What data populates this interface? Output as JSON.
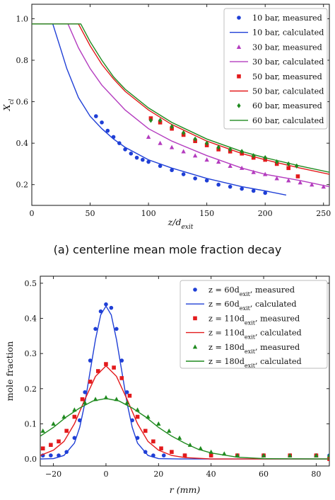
{
  "caption_a": "(a) centerline mean mole fraction decay",
  "colors": {
    "blue": "#1f3fd6",
    "magenta": "#b43cbf",
    "red": "#e31a1c",
    "green": "#1f8a1f"
  },
  "chart_data": [
    {
      "type": "scatter",
      "ylabel": "X_cl",
      "xlabel": "z/d_exit",
      "xlim": [
        0,
        255
      ],
      "ylim": [
        0.1,
        1.07
      ],
      "xticks": [
        0,
        50,
        100,
        150,
        200,
        250
      ],
      "yticks": [
        0.2,
        0.4,
        0.6,
        0.8,
        1.0
      ],
      "legend_position": "top-right",
      "series": [
        {
          "name": "10 bar, measured",
          "kind": "points",
          "marker": "circle",
          "color": "#1f3fd6",
          "x": [
            55,
            60,
            65,
            70,
            75,
            80,
            85,
            90,
            95,
            100,
            110,
            120,
            130,
            140,
            150,
            160,
            170,
            180,
            190,
            200
          ],
          "y": [
            0.53,
            0.5,
            0.46,
            0.43,
            0.4,
            0.37,
            0.35,
            0.33,
            0.32,
            0.31,
            0.29,
            0.27,
            0.25,
            0.23,
            0.22,
            0.2,
            0.19,
            0.18,
            0.17,
            0.16
          ]
        },
        {
          "name": "10 bar, calculated",
          "kind": "line",
          "color": "#1f3fd6",
          "x": [
            0,
            18,
            25,
            30,
            40,
            50,
            60,
            70,
            80,
            100,
            120,
            150,
            180,
            200,
            218
          ],
          "y": [
            0.975,
            0.975,
            0.85,
            0.76,
            0.62,
            0.53,
            0.47,
            0.42,
            0.38,
            0.32,
            0.28,
            0.23,
            0.19,
            0.17,
            0.15
          ]
        },
        {
          "name": "30 bar, measured",
          "kind": "points",
          "marker": "triangle",
          "color": "#b43cbf",
          "x": [
            100,
            110,
            120,
            130,
            140,
            150,
            160,
            170,
            180,
            190,
            200,
            210,
            220,
            230,
            240,
            250
          ],
          "y": [
            0.43,
            0.4,
            0.38,
            0.36,
            0.34,
            0.32,
            0.31,
            0.29,
            0.28,
            0.26,
            0.25,
            0.23,
            0.22,
            0.21,
            0.2,
            0.19
          ]
        },
        {
          "name": "30 bar, calculated",
          "kind": "line",
          "color": "#b43cbf",
          "x": [
            0,
            31,
            40,
            50,
            60,
            80,
            100,
            120,
            150,
            180,
            200,
            230,
            255
          ],
          "y": [
            0.975,
            0.975,
            0.86,
            0.76,
            0.68,
            0.56,
            0.47,
            0.41,
            0.34,
            0.28,
            0.25,
            0.22,
            0.19
          ]
        },
        {
          "name": "50 bar, measured",
          "kind": "points",
          "marker": "square",
          "color": "#e31a1c",
          "x": [
            102,
            110,
            120,
            130,
            140,
            150,
            160,
            170,
            180,
            190,
            200,
            210,
            220,
            228
          ],
          "y": [
            0.52,
            0.5,
            0.47,
            0.44,
            0.41,
            0.39,
            0.37,
            0.36,
            0.35,
            0.33,
            0.32,
            0.3,
            0.28,
            0.24
          ]
        },
        {
          "name": "50 bar, calculated",
          "kind": "line",
          "color": "#e31a1c",
          "x": [
            0,
            40,
            50,
            60,
            70,
            80,
            100,
            120,
            150,
            180,
            200,
            230,
            255
          ],
          "y": [
            0.975,
            0.975,
            0.87,
            0.78,
            0.71,
            0.65,
            0.56,
            0.49,
            0.41,
            0.35,
            0.32,
            0.28,
            0.25
          ]
        },
        {
          "name": "60 bar, measured",
          "kind": "points",
          "marker": "diamond",
          "color": "#1f8a1f",
          "x": [
            102,
            110,
            120,
            130,
            140,
            150,
            160,
            170,
            180,
            190,
            200,
            210,
            220,
            227
          ],
          "y": [
            0.51,
            0.51,
            0.48,
            0.45,
            0.42,
            0.4,
            0.38,
            0.37,
            0.36,
            0.34,
            0.33,
            0.31,
            0.3,
            0.29
          ]
        },
        {
          "name": "60 bar, calculated",
          "kind": "line",
          "color": "#1f8a1f",
          "x": [
            0,
            42,
            50,
            60,
            70,
            80,
            100,
            120,
            150,
            180,
            200,
            230,
            255
          ],
          "y": [
            0.975,
            0.975,
            0.89,
            0.8,
            0.72,
            0.66,
            0.57,
            0.5,
            0.42,
            0.36,
            0.33,
            0.29,
            0.26
          ]
        }
      ]
    },
    {
      "type": "scatter",
      "ylabel": "mole fraction",
      "xlabel": "r (mm)",
      "xlim": [
        -25,
        85
      ],
      "ylim": [
        -0.02,
        0.52
      ],
      "xticks": [
        -20,
        0,
        20,
        40,
        60,
        80
      ],
      "yticks": [
        0.0,
        0.1,
        0.2,
        0.3,
        0.4,
        0.5
      ],
      "legend_position": "top-right",
      "series": [
        {
          "name": "z = 60d_exit, measured",
          "kind": "points",
          "marker": "circle",
          "color": "#1f3fd6",
          "x": [
            -24,
            -21,
            -18,
            -15,
            -12,
            -10,
            -8,
            -6,
            -4,
            -2,
            0,
            2,
            4,
            6,
            8,
            10,
            12,
            15,
            18,
            22,
            30,
            40,
            50,
            60,
            70,
            80,
            85
          ],
          "y": [
            0.01,
            0.01,
            0.01,
            0.02,
            0.06,
            0.11,
            0.19,
            0.28,
            0.37,
            0.42,
            0.44,
            0.43,
            0.37,
            0.28,
            0.19,
            0.11,
            0.06,
            0.02,
            0.01,
            0.01,
            0.01,
            0.01,
            0.01,
            0.01,
            0.01,
            0.01,
            0.01
          ]
        },
        {
          "name": "z = 60d_exit, calculated",
          "kind": "line",
          "color": "#1f3fd6",
          "x": [
            -25,
            -20,
            -16,
            -12,
            -10,
            -8,
            -6,
            -4,
            -2,
            0,
            2,
            4,
            6,
            8,
            10,
            12,
            16,
            20,
            30,
            50,
            85
          ],
          "y": [
            0.0,
            0.001,
            0.01,
            0.045,
            0.09,
            0.16,
            0.25,
            0.34,
            0.41,
            0.435,
            0.41,
            0.34,
            0.25,
            0.16,
            0.09,
            0.045,
            0.01,
            0.001,
            0.0,
            0.0,
            0.0
          ]
        },
        {
          "name": "z = 110d_exit, measured",
          "kind": "points",
          "marker": "square",
          "color": "#e31a1c",
          "x": [
            -24,
            -21,
            -18,
            -15,
            -12,
            -9,
            -6,
            -3,
            0,
            3,
            6,
            9,
            12,
            15,
            18,
            21,
            25,
            30,
            40,
            50,
            60,
            70,
            80,
            85
          ],
          "y": [
            0.03,
            0.04,
            0.05,
            0.08,
            0.12,
            0.17,
            0.22,
            0.25,
            0.27,
            0.26,
            0.23,
            0.18,
            0.12,
            0.08,
            0.05,
            0.03,
            0.02,
            0.01,
            0.01,
            0.01,
            0.01,
            0.01,
            0.01,
            0.0
          ]
        },
        {
          "name": "z = 110d_exit, calculated",
          "kind": "line",
          "color": "#e31a1c",
          "x": [
            -25,
            -20,
            -16,
            -12,
            -8,
            -4,
            0,
            4,
            8,
            12,
            16,
            20,
            25,
            30,
            40,
            50,
            85
          ],
          "y": [
            0.01,
            0.025,
            0.05,
            0.1,
            0.17,
            0.235,
            0.265,
            0.235,
            0.17,
            0.1,
            0.05,
            0.025,
            0.01,
            0.004,
            0.0,
            0.0,
            0.0
          ]
        },
        {
          "name": "z = 180d_exit, measured",
          "kind": "points",
          "marker": "triangle",
          "color": "#1f8a1f",
          "x": [
            -24,
            -20,
            -16,
            -12,
            -8,
            -4,
            0,
            4,
            8,
            12,
            16,
            20,
            24,
            28,
            32,
            36,
            40,
            45,
            50,
            60,
            70,
            80,
            85
          ],
          "y": [
            0.08,
            0.1,
            0.12,
            0.14,
            0.16,
            0.17,
            0.175,
            0.17,
            0.16,
            0.14,
            0.12,
            0.1,
            0.08,
            0.06,
            0.04,
            0.03,
            0.02,
            0.015,
            0.01,
            0.01,
            0.01,
            0.01,
            0.01
          ]
        },
        {
          "name": "z = 180d_exit, calculated",
          "kind": "line",
          "color": "#1f8a1f",
          "x": [
            -25,
            -20,
            -15,
            -10,
            -5,
            0,
            5,
            10,
            15,
            20,
            25,
            30,
            35,
            40,
            50,
            60,
            85
          ],
          "y": [
            0.065,
            0.09,
            0.12,
            0.145,
            0.165,
            0.172,
            0.165,
            0.145,
            0.12,
            0.09,
            0.065,
            0.045,
            0.028,
            0.017,
            0.005,
            0.001,
            0.0
          ]
        }
      ]
    }
  ]
}
